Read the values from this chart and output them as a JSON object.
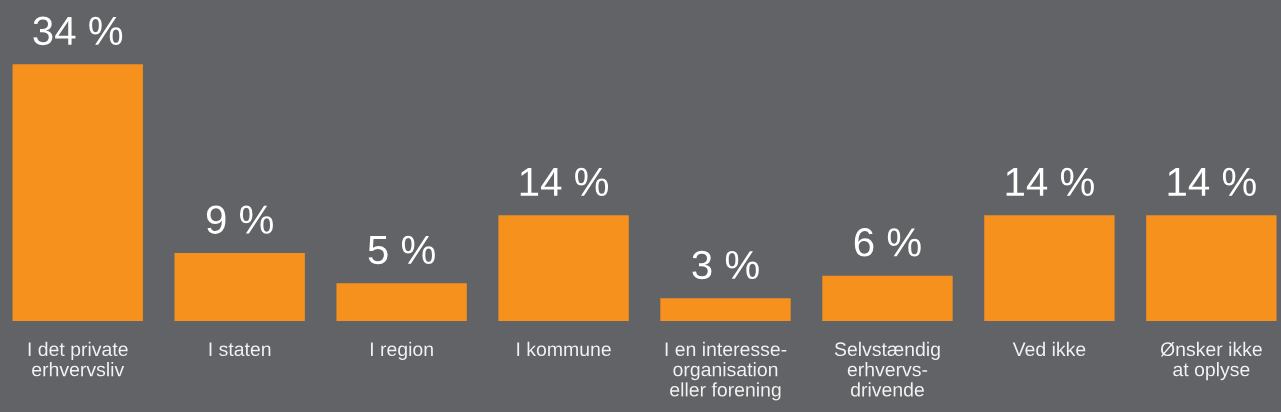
{
  "chart_data": {
    "type": "bar",
    "categories": [
      "I det private\nerhvervsliv",
      "I staten",
      "I region",
      "I kommune",
      "I en interesse-\norganisation\neller forening",
      "Selvstændig\nerhvervs-\ndrivende",
      "Ved ikke",
      "Ønsker ikke\nat oplyse"
    ],
    "values": [
      34,
      9,
      5,
      14,
      3,
      6,
      14,
      14
    ],
    "value_labels": [
      "34 %",
      "9 %",
      "5 %",
      "14 %",
      "3 %",
      "6 %",
      "14 %",
      "14 %"
    ],
    "color": "#f7911e"
  }
}
